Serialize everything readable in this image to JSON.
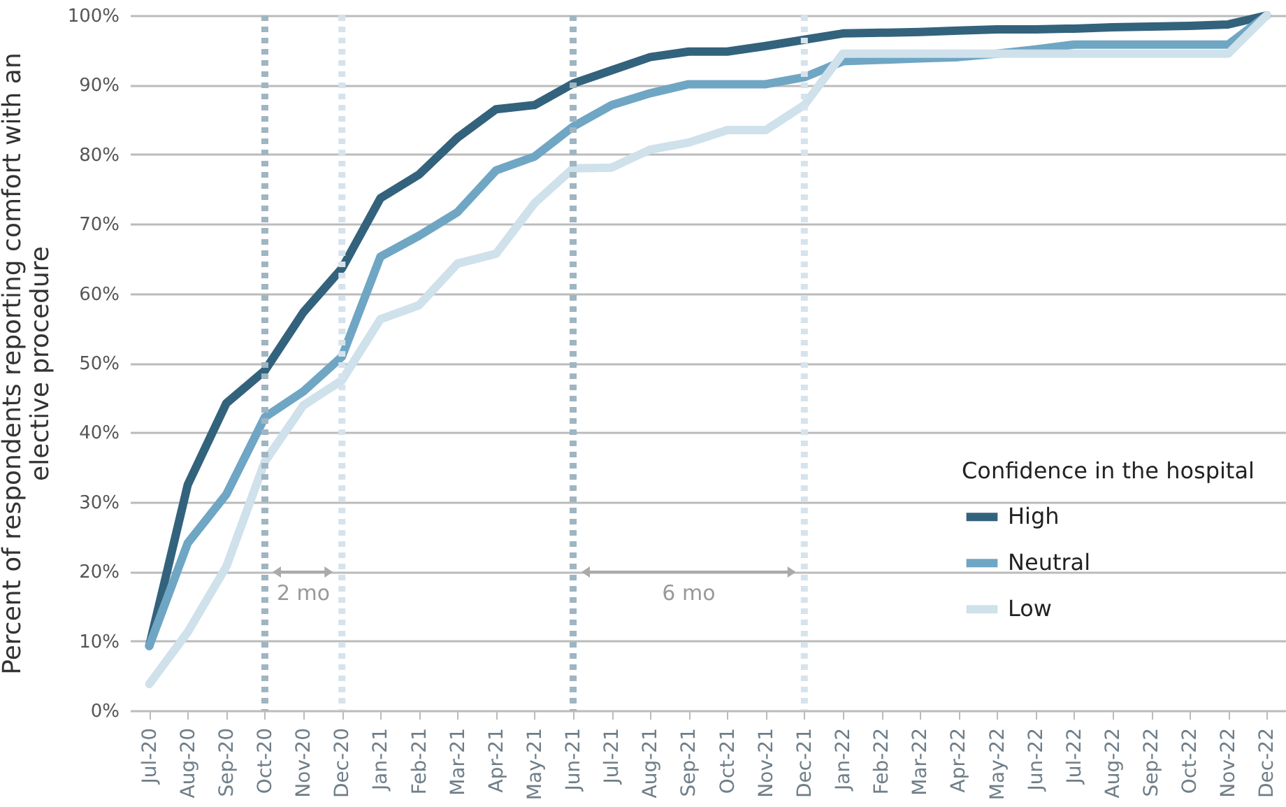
{
  "chart_data": {
    "type": "line",
    "ylabel": "Percent of respondents reporting comfort with an elective procedure",
    "legend_title": "Confidence in the hospital",
    "categories": [
      "Jul-20",
      "Aug-20",
      "Sep-20",
      "Oct-20",
      "Nov-20",
      "Dec-20",
      "Jan-21",
      "Feb-21",
      "Mar-21",
      "Apr-21",
      "May-21",
      "Jun-21",
      "Jul-21",
      "Aug-21",
      "Sep-21",
      "Oct-21",
      "Nov-21",
      "Dec-21",
      "Jan-22",
      "Feb-22",
      "Mar-22",
      "Apr-22",
      "May-22",
      "Jun-22",
      "Jul-22",
      "Aug-22",
      "Sep-22",
      "Oct-22",
      "Nov-22",
      "Dec-22"
    ],
    "series": [
      {
        "name": "High",
        "color": "#33627c",
        "values": [
          9.3,
          32.5,
          44.2,
          48.9,
          57.3,
          63.6,
          73.7,
          77.1,
          82.4,
          86.5,
          87.1,
          90.2,
          92.1,
          94.0,
          94.8,
          94.8,
          95.6,
          96.5,
          97.4,
          97.5,
          97.6,
          97.8,
          98.0,
          98.0,
          98.1,
          98.3,
          98.4,
          98.5,
          98.7,
          100
        ]
      },
      {
        "name": "Neutral",
        "color": "#6fa6c4",
        "values": [
          9.3,
          24.1,
          31.1,
          42.2,
          45.9,
          50.9,
          65.3,
          68.3,
          71.7,
          77.7,
          79.7,
          84.0,
          87.1,
          88.8,
          90.1,
          90.1,
          90.1,
          91.1,
          93.4,
          93.6,
          93.8,
          94.0,
          94.5,
          95.1,
          95.8,
          95.8,
          95.8,
          95.8,
          95.8,
          100
        ]
      },
      {
        "name": "Low",
        "color": "#cfe1eb",
        "values": [
          3.8,
          11.3,
          20.7,
          35.8,
          43.9,
          47.5,
          56.3,
          58.3,
          64.3,
          65.7,
          73.0,
          78.0,
          78.1,
          80.7,
          81.7,
          83.5,
          83.5,
          87.1,
          94.5,
          94.5,
          94.5,
          94.5,
          94.5,
          94.5,
          94.5,
          94.5,
          94.5,
          94.5,
          94.5,
          100
        ]
      }
    ],
    "ylim": [
      0,
      100
    ],
    "yticks": [
      {
        "value": 0,
        "label": "0%"
      },
      {
        "value": 10,
        "label": "10%"
      },
      {
        "value": 20,
        "label": "20%"
      },
      {
        "value": 30,
        "label": "30%"
      },
      {
        "value": 40,
        "label": "40%"
      },
      {
        "value": 50,
        "label": "50%"
      },
      {
        "value": 60,
        "label": "60%"
      },
      {
        "value": 70,
        "label": "70%"
      },
      {
        "value": 80,
        "label": "80%"
      },
      {
        "value": 90,
        "label": "90%"
      },
      {
        "value": 100,
        "label": "100%"
      }
    ],
    "ref_lines": [
      {
        "axis": "x",
        "value": "Oct-20",
        "color": "#9fb5c2",
        "line_style": "dotted"
      },
      {
        "axis": "x",
        "value": "Dec-20",
        "color": "#d6e3ec",
        "line_style": "dotted"
      },
      {
        "axis": "x",
        "value": "Jun-21",
        "color": "#9fb5c2",
        "line_style": "dotted"
      },
      {
        "axis": "x",
        "value": "Dec-21",
        "color": "#d6e3ec",
        "line_style": "dotted"
      }
    ],
    "annotations": [
      "2 mo",
      "6 mo"
    ],
    "grid": "y",
    "legend": "right",
    "line_style": "solid",
    "marker": "none"
  }
}
